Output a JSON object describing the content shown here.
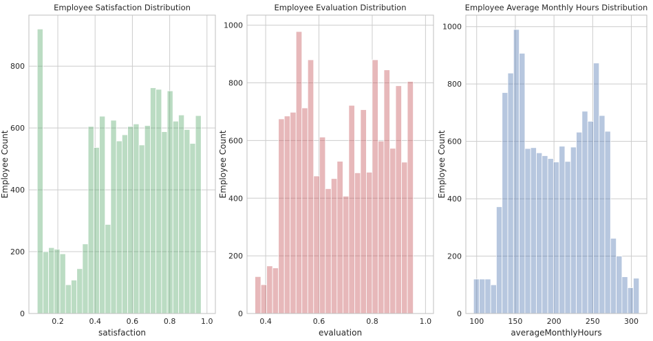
{
  "chart_data": [
    {
      "type": "bar",
      "subtype": "histogram",
      "title": "Employee Satisfaction Distribution",
      "xlabel": "satisfaction",
      "ylabel": "Employee Count",
      "color": "#55a868",
      "xlim": [
        0.045,
        1.045
      ],
      "ylim": [
        0,
        965
      ],
      "xticks": [
        0.2,
        0.4,
        0.6,
        0.8,
        1.0
      ],
      "xtick_labels": [
        "0.2",
        "0.4",
        "0.6",
        "0.8",
        "1.0"
      ],
      "yticks": [
        0,
        200,
        400,
        600,
        800
      ],
      "bin_start": 0.09,
      "bin_width": 0.0303,
      "values": [
        920,
        200,
        213,
        208,
        193,
        93,
        108,
        145,
        225,
        605,
        537,
        638,
        288,
        625,
        558,
        578,
        605,
        613,
        545,
        608,
        730,
        725,
        588,
        720,
        622,
        642,
        595,
        550,
        640
      ]
    },
    {
      "type": "bar",
      "subtype": "histogram",
      "title": "Employee Evaluation Distribution",
      "xlabel": "evaluation",
      "ylabel": "Employee Count",
      "color": "#c44e52",
      "xlim": [
        0.33,
        1.03
      ],
      "ylim": [
        0,
        1035
      ],
      "xticks": [
        0.4,
        0.6,
        0.8,
        1.0
      ],
      "xtick_labels": [
        "0.4",
        "0.6",
        "0.8",
        "1.0"
      ],
      "yticks": [
        0,
        200,
        400,
        600,
        800,
        1000
      ],
      "bin_start": 0.36,
      "bin_width": 0.022,
      "values": [
        128,
        100,
        165,
        158,
        675,
        685,
        698,
        978,
        713,
        880,
        477,
        612,
        433,
        468,
        528,
        407,
        722,
        488,
        707,
        490,
        880,
        598,
        845,
        573,
        790,
        525,
        805
      ]
    },
    {
      "type": "bar",
      "subtype": "histogram",
      "title": "Employee Average Monthly Hours Distribution",
      "xlabel": "averageMonthlyHours",
      "ylabel": "Employee Count",
      "color": "#4c72b0",
      "xlim": [
        86,
        320
      ],
      "ylim": [
        0,
        1040
      ],
      "xticks": [
        100,
        150,
        200,
        250,
        300
      ],
      "xtick_labels": [
        "100",
        "150",
        "200",
        "250",
        "300"
      ],
      "yticks": [
        0,
        200,
        400,
        600,
        800,
        1000
      ],
      "bin_start": 96,
      "bin_width": 7.38,
      "values": [
        120,
        120,
        120,
        100,
        372,
        770,
        838,
        990,
        907,
        575,
        578,
        560,
        550,
        540,
        528,
        583,
        530,
        580,
        632,
        705,
        670,
        873,
        690,
        635,
        262,
        200,
        128,
        90,
        123
      ]
    }
  ]
}
